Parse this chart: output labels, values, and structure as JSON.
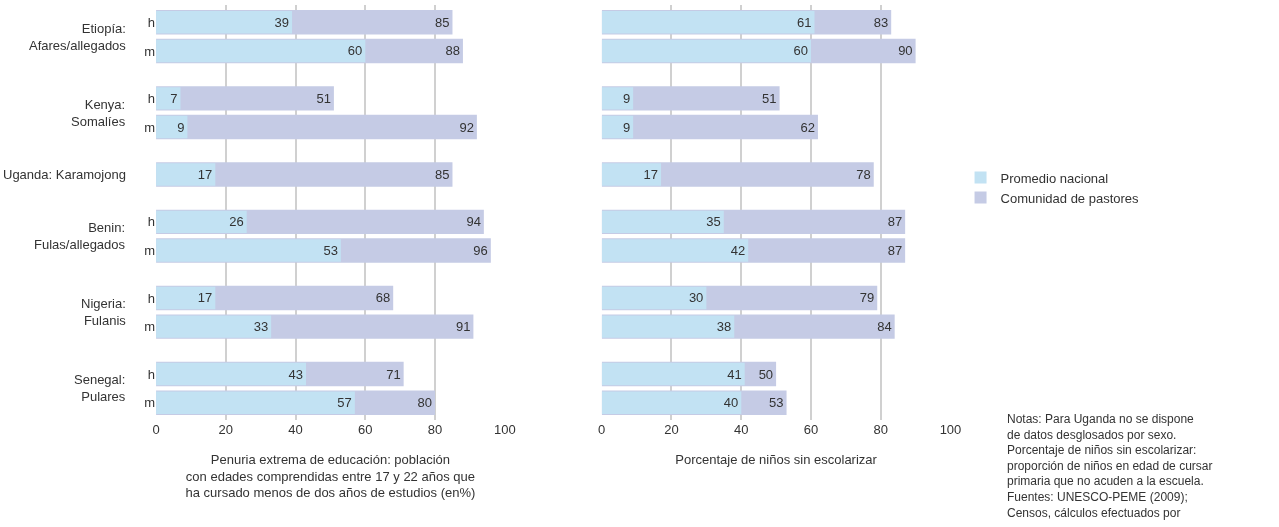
{
  "chart_data": [
    {
      "type": "bar",
      "orientation": "horizontal",
      "categories": [
        "h",
        "m",
        "h",
        "m",
        null,
        "h",
        "m",
        "h",
        "m",
        "h",
        "m"
      ],
      "annotations": [
        "Etiopía:\nAfares/allegados",
        "Kenya:\nSomalíes",
        "Uganda: Karamojong",
        "Benin:\nFulas/allegados",
        "Nigeria:\nFulanis",
        "Senegal:\nPulares"
      ],
      "series": [
        {
          "name": "Promedio nacional",
          "color": "#c2e2f3",
          "values": [
            39,
            60,
            7,
            9,
            17,
            26,
            53,
            17,
            33,
            43,
            57
          ]
        },
        {
          "name": "Comunidad de pastores",
          "color": "#c5cbe5",
          "values": [
            85,
            88,
            51,
            92,
            85,
            94,
            96,
            68,
            91,
            71,
            80
          ]
        }
      ],
      "xlabel": "Penuria extrema de educación: población\ncon edades comprendidas entre 17 y 22 años que\nha cursado menos de dos años de estudios (en%)",
      "xlim": [
        0,
        100
      ],
      "xticks": [
        0,
        20,
        40,
        60,
        80,
        100
      ],
      "grid": "x",
      "data_labels": true,
      "legend": "right"
    },
    {
      "type": "bar",
      "orientation": "horizontal",
      "categories": [
        null,
        null,
        null,
        null,
        null,
        null,
        null,
        null,
        null,
        null,
        null
      ],
      "series": [
        {
          "color": "#c2e2f3",
          "values": [
            61,
            60,
            9,
            9,
            17,
            35,
            42,
            30,
            38,
            41,
            40
          ]
        },
        {
          "color": "#c5cbe5",
          "values": [
            83,
            90,
            51,
            62,
            78,
            87,
            87,
            79,
            84,
            50,
            53
          ]
        }
      ],
      "xlabel": "Porcentaje de niños sin escolarizar",
      "annotations": [
        "Notas: Para Uganda no se dispone\nde datos desglosados por sexo.",
        "Porcentaje de niños sin escolarizar:\nproporción de niños en edad de cursar\nprimaria que no acuden a la escuela.",
        "Fuentes: UNESCO-PEME (2009);\nCensos, cálculos efectuados por"
      ],
      "xlim": [
        0,
        100
      ],
      "xticks": [
        0,
        20,
        40,
        60,
        80,
        100
      ],
      "grid": "x",
      "data_labels": true,
      "tick_labels": "x"
    }
  ]
}
